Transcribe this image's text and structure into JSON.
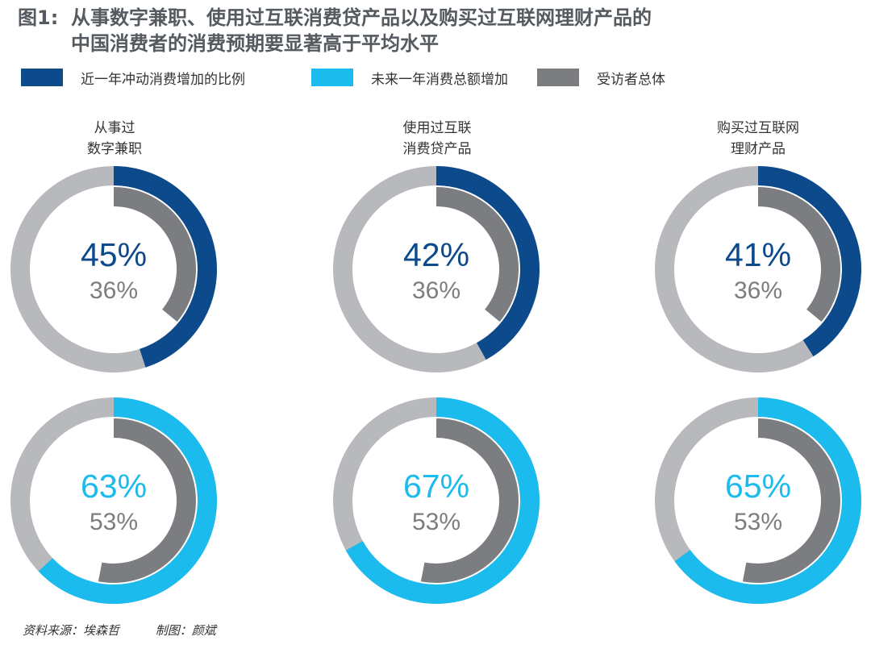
{
  "title": {
    "prefix": "图1:",
    "line1": "从事数字兼职、使用过互联消费贷产品以及购买过互联网理财产品的",
    "line2": "中国消费者的消费预期要显著高于平均水平"
  },
  "legend": [
    {
      "label": "近一年冲动消费增加的比例",
      "color": "#0d4a8c",
      "icon": "dark-blue-swatch"
    },
    {
      "label": "未来一年消费总额增加",
      "color": "#1cbbed",
      "icon": "light-blue-swatch"
    },
    {
      "label": "受访者总体",
      "color": "#7b7d81",
      "icon": "gray-swatch"
    }
  ],
  "categories": [
    {
      "line1": "从事过",
      "line2": "数字兼职"
    },
    {
      "line1": "使用过互联",
      "line2": "消费贷产品"
    },
    {
      "line1": "购买过互联网",
      "line2": "理财产品"
    }
  ],
  "chart_data": {
    "type": "donut",
    "categories": [
      "从事过数字兼职",
      "使用过互联消费贷产品",
      "购买过互联网理财产品"
    ],
    "series": [
      {
        "name": "近一年冲动消费增加的比例",
        "color": "#0d4a8c",
        "values": [
          45,
          42,
          41
        ],
        "labels": [
          "45%",
          "42%",
          "41%"
        ]
      },
      {
        "name": "未来一年消费总额增加",
        "color": "#1cbbed",
        "values": [
          63,
          67,
          65
        ],
        "labels": [
          "63%",
          "67%",
          "65%"
        ]
      }
    ],
    "baseline": {
      "name": "受访者总体",
      "color": "#7b7d81",
      "values": [
        36,
        53
      ],
      "labels": [
        "36%",
        "53%"
      ]
    },
    "track_color": "#b8b9bd"
  },
  "footer": {
    "source": "资料来源：埃森哲",
    "author": "制图：颜斌"
  }
}
